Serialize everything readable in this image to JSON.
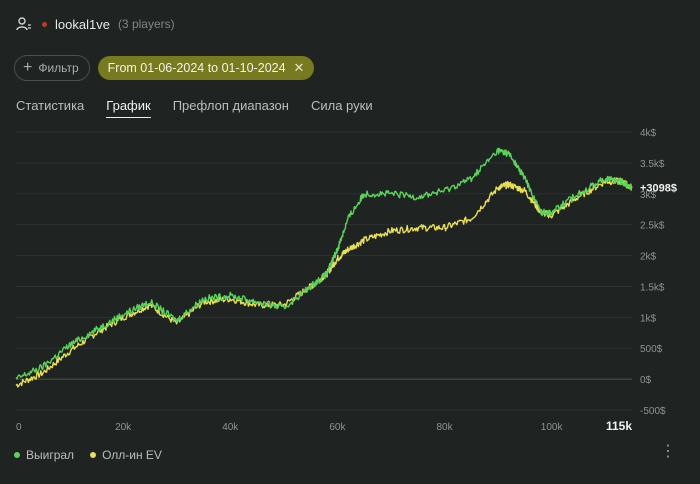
{
  "header": {
    "username": "lookal1ve",
    "players": "(3 players)"
  },
  "filters": {
    "filter_label": "Фильтр",
    "date_range": "From 01-06-2024 to 01-10-2024"
  },
  "tabs": [
    {
      "label": "Статистика",
      "active": false
    },
    {
      "label": "График",
      "active": true
    },
    {
      "label": "Префлоп диапазон",
      "active": false
    },
    {
      "label": "Сила руки",
      "active": false
    }
  ],
  "chart_data": {
    "type": "line",
    "x_ticks": [
      "0",
      "20k",
      "40k",
      "60k",
      "80k",
      "100k",
      "115k"
    ],
    "y_ticks": [
      "4k$",
      "3.5k$",
      "3k$",
      "2.5k$",
      "2k$",
      "1.5k$",
      "1k$",
      "500$",
      "0$",
      "-500$"
    ],
    "ylim": [
      -500,
      4000
    ],
    "xlim": [
      0,
      115000
    ],
    "end_label": "+3098$",
    "series": [
      {
        "name": "Выиграл",
        "color": "#5bd35b",
        "x": [
          0,
          5000,
          10000,
          15000,
          20000,
          25000,
          30000,
          35000,
          40000,
          45000,
          50000,
          55000,
          58000,
          60000,
          62000,
          65000,
          70000,
          75000,
          80000,
          85000,
          90000,
          92000,
          95000,
          98000,
          100000,
          105000,
          110000,
          113000,
          115000
        ],
        "values": [
          0,
          200,
          550,
          800,
          1050,
          1250,
          950,
          1300,
          1350,
          1250,
          1150,
          1500,
          1700,
          2100,
          2600,
          3000,
          3000,
          2950,
          3050,
          3250,
          3700,
          3650,
          3250,
          2700,
          2700,
          3000,
          3250,
          3200,
          3098
        ]
      },
      {
        "name": "Олл-ин EV",
        "color": "#e8e050",
        "x": [
          0,
          5000,
          10000,
          15000,
          20000,
          25000,
          30000,
          35000,
          40000,
          45000,
          50000,
          55000,
          58000,
          60000,
          62000,
          65000,
          70000,
          75000,
          80000,
          85000,
          90000,
          92000,
          95000,
          98000,
          100000,
          105000,
          110000,
          113000,
          115000
        ],
        "values": [
          -100,
          100,
          450,
          750,
          1000,
          1200,
          900,
          1250,
          1300,
          1200,
          1200,
          1500,
          1700,
          1950,
          2100,
          2250,
          2400,
          2450,
          2450,
          2600,
          3100,
          3150,
          3050,
          2700,
          2650,
          2950,
          3200,
          3200,
          3098
        ]
      }
    ],
    "grid": true
  },
  "legend": [
    {
      "label": "Выиграл",
      "color": "#5bd35b"
    },
    {
      "label": "Олл-ин EV",
      "color": "#e8e050"
    }
  ]
}
